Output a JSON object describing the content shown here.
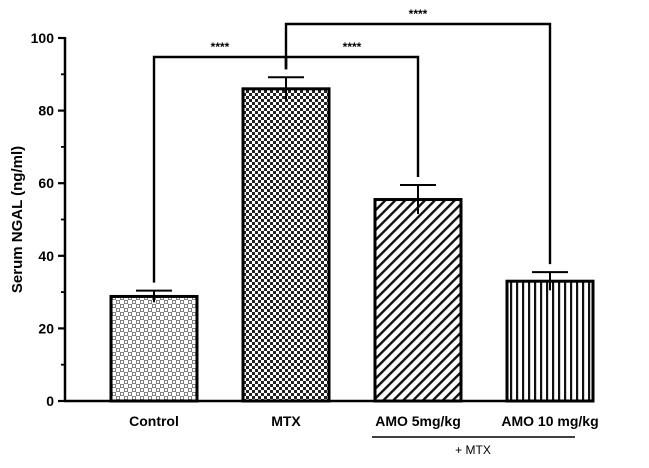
{
  "chart_data": {
    "type": "bar",
    "ylabel": "Serum NGAL (ng/ml)",
    "ylim": [
      0,
      100
    ],
    "yticks": [
      "0",
      "20",
      "40",
      "60",
      "80",
      "100"
    ],
    "categories": [
      "Control",
      "MTX",
      "AMO 5mg/kg",
      "AMO 10 mg/kg"
    ],
    "values": [
      28.8,
      86,
      55.5,
      33
    ],
    "errors": [
      1.6,
      3.2,
      4.0,
      2.5
    ],
    "patterns": [
      "dots",
      "checker",
      "diagonal",
      "vertical"
    ],
    "group_label": "+ MTX",
    "significance": [
      {
        "label": "****",
        "from": 0,
        "to": 1
      },
      {
        "label": "****",
        "from": 1,
        "to": 2
      },
      {
        "label": "****",
        "from": 1,
        "to": 3
      }
    ]
  }
}
